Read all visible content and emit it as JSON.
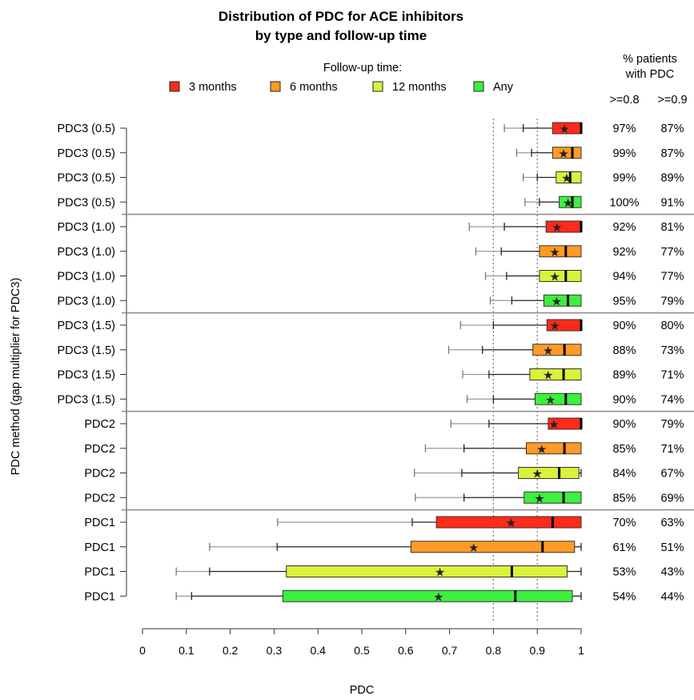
{
  "chart_data": {
    "type": "boxplot",
    "title_line1": "Distribution of PDC for ACE inhibitors",
    "title_line2": "by type and follow-up time",
    "xlabel": "PDC",
    "ylabel": "PDC method (gap multiplier for PDC3)",
    "xlim": [
      0,
      1
    ],
    "xticks": [
      "0",
      "0.1",
      "0.2",
      "0.3",
      "0.4",
      "0.5",
      "0.6",
      "0.7",
      "0.8",
      "0.9",
      "1"
    ],
    "reference_lines": [
      0.8,
      0.9
    ],
    "legend": {
      "title": "Follow-up time:",
      "items": [
        {
          "label": "3 months",
          "color": "#ff2a1a"
        },
        {
          "label": "6 months",
          "color": "#ff9a26"
        },
        {
          "label": "12 months",
          "color": "#d9f23a"
        },
        {
          "label": "Any",
          "color": "#3df03d"
        }
      ]
    },
    "pct_header": {
      "line1": "% patients",
      "line2": "with PDC",
      "col1": ">=0.8",
      "col2": ">=0.9"
    },
    "rows": [
      {
        "label": "PDC3 (0.5)",
        "follow_up": "3 months",
        "whisker_lo": 0.825,
        "p10": 0.868,
        "q1": 0.935,
        "median": 1.0,
        "mean": 0.962,
        "q3": 1.0,
        "whisker_hi": 1.0,
        "pct08": "97%",
        "pct09": "87%"
      },
      {
        "label": "PDC3 (0.5)",
        "follow_up": "6 months",
        "whisker_lo": 0.853,
        "p10": 0.887,
        "q1": 0.935,
        "median": 0.98,
        "mean": 0.96,
        "q3": 1.0,
        "whisker_hi": 1.0,
        "pct08": "99%",
        "pct09": "87%"
      },
      {
        "label": "PDC3 (0.5)",
        "follow_up": "12 months",
        "whisker_lo": 0.868,
        "p10": 0.9,
        "q1": 0.943,
        "median": 0.975,
        "mean": 0.967,
        "q3": 1.0,
        "whisker_hi": 1.0,
        "pct08": "99%",
        "pct09": "89%"
      },
      {
        "label": "PDC3 (0.5)",
        "follow_up": "Any",
        "whisker_lo": 0.872,
        "p10": 0.905,
        "q1": 0.95,
        "median": 0.98,
        "mean": 0.97,
        "q3": 1.0,
        "whisker_hi": 1.0,
        "pct08": "100%",
        "pct09": "91%"
      },
      {
        "label": "PDC3 (1.0)",
        "follow_up": "3 months",
        "whisker_lo": 0.745,
        "p10": 0.825,
        "q1": 0.92,
        "median": 1.0,
        "mean": 0.945,
        "q3": 1.0,
        "whisker_hi": 1.0,
        "pct08": "92%",
        "pct09": "81%"
      },
      {
        "label": "PDC3 (1.0)",
        "follow_up": "6 months",
        "whisker_lo": 0.76,
        "p10": 0.818,
        "q1": 0.905,
        "median": 0.965,
        "mean": 0.94,
        "q3": 1.0,
        "whisker_hi": 1.0,
        "pct08": "92%",
        "pct09": "77%"
      },
      {
        "label": "PDC3 (1.0)",
        "follow_up": "12 months",
        "whisker_lo": 0.782,
        "p10": 0.83,
        "q1": 0.905,
        "median": 0.965,
        "mean": 0.94,
        "q3": 1.0,
        "whisker_hi": 1.0,
        "pct08": "94%",
        "pct09": "77%"
      },
      {
        "label": "PDC3 (1.0)",
        "follow_up": "Any",
        "whisker_lo": 0.793,
        "p10": 0.842,
        "q1": 0.915,
        "median": 0.97,
        "mean": 0.944,
        "q3": 1.0,
        "whisker_hi": 1.0,
        "pct08": "95%",
        "pct09": "79%"
      },
      {
        "label": "PDC3 (1.5)",
        "follow_up": "3 months",
        "whisker_lo": 0.725,
        "p10": 0.8,
        "q1": 0.922,
        "median": 1.0,
        "mean": 0.94,
        "q3": 1.0,
        "whisker_hi": 1.0,
        "pct08": "90%",
        "pct09": "80%"
      },
      {
        "label": "PDC3 (1.5)",
        "follow_up": "6 months",
        "whisker_lo": 0.698,
        "p10": 0.775,
        "q1": 0.89,
        "median": 0.962,
        "mean": 0.925,
        "q3": 1.0,
        "whisker_hi": 1.0,
        "pct08": "88%",
        "pct09": "73%"
      },
      {
        "label": "PDC3 (1.5)",
        "follow_up": "12 months",
        "whisker_lo": 0.73,
        "p10": 0.79,
        "q1": 0.883,
        "median": 0.96,
        "mean": 0.925,
        "q3": 1.0,
        "whisker_hi": 1.0,
        "pct08": "89%",
        "pct09": "71%"
      },
      {
        "label": "PDC3 (1.5)",
        "follow_up": "Any",
        "whisker_lo": 0.74,
        "p10": 0.8,
        "q1": 0.895,
        "median": 0.965,
        "mean": 0.93,
        "q3": 1.0,
        "whisker_hi": 1.0,
        "pct08": "90%",
        "pct09": "74%"
      },
      {
        "label": "PDC2",
        "follow_up": "3 months",
        "whisker_lo": 0.703,
        "p10": 0.79,
        "q1": 0.925,
        "median": 1.0,
        "mean": 0.938,
        "q3": 1.0,
        "whisker_hi": 1.0,
        "pct08": "90%",
        "pct09": "79%"
      },
      {
        "label": "PDC2",
        "follow_up": "6 months",
        "whisker_lo": 0.645,
        "p10": 0.733,
        "q1": 0.875,
        "median": 0.962,
        "mean": 0.91,
        "q3": 1.0,
        "whisker_hi": 1.0,
        "pct08": "85%",
        "pct09": "71%"
      },
      {
        "label": "PDC2",
        "follow_up": "12 months",
        "whisker_lo": 0.62,
        "p10": 0.728,
        "q1": 0.857,
        "median": 0.95,
        "mean": 0.9,
        "q3": 0.995,
        "whisker_hi": 1.0,
        "pct08": "84%",
        "pct09": "67%"
      },
      {
        "label": "PDC2",
        "follow_up": "Any",
        "whisker_lo": 0.622,
        "p10": 0.733,
        "q1": 0.87,
        "median": 0.96,
        "mean": 0.905,
        "q3": 1.0,
        "whisker_hi": 1.0,
        "pct08": "85%",
        "pct09": "69%"
      },
      {
        "label": "PDC1",
        "follow_up": "3 months",
        "whisker_lo": 0.308,
        "p10": 0.615,
        "q1": 0.67,
        "median": 0.935,
        "mean": 0.84,
        "q3": 1.0,
        "whisker_hi": 1.0,
        "pct08": "70%",
        "pct09": "63%"
      },
      {
        "label": "PDC1",
        "follow_up": "6 months",
        "whisker_lo": 0.153,
        "p10": 0.307,
        "q1": 0.612,
        "median": 0.912,
        "mean": 0.755,
        "q3": 0.985,
        "whisker_hi": 1.0,
        "pct08": "61%",
        "pct09": "51%"
      },
      {
        "label": "PDC1",
        "follow_up": "12 months",
        "whisker_lo": 0.077,
        "p10": 0.153,
        "q1": 0.328,
        "median": 0.842,
        "mean": 0.678,
        "q3": 0.968,
        "whisker_hi": 1.0,
        "pct08": "53%",
        "pct09": "43%"
      },
      {
        "label": "PDC1",
        "follow_up": "Any",
        "whisker_lo": 0.077,
        "p10": 0.112,
        "q1": 0.32,
        "median": 0.85,
        "mean": 0.675,
        "q3": 0.98,
        "whisker_hi": 1.0,
        "pct08": "54%",
        "pct09": "44%"
      }
    ]
  }
}
